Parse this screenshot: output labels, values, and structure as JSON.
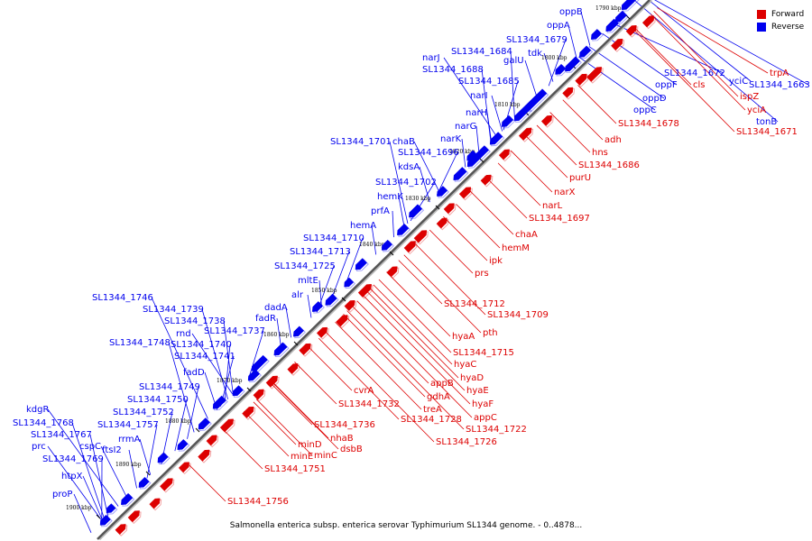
{
  "colors": {
    "forward": "#dd0000",
    "reverse": "#0000ee",
    "backbone": "#555555"
  },
  "legend": {
    "forward": "Forward",
    "reverse": "Reverse"
  },
  "caption": "Salmonella enterica subsp. enterica serovar Typhimurium SL1344 genome. - 0..4878...",
  "ticks": [
    "1790 kbp",
    "1800 kbp",
    "1810 kbp",
    "1820 kbp",
    "1830 kbp",
    "1840 kbp",
    "1850 kbp",
    "1860 kbp",
    "1870 kbp",
    "1880 kbp",
    "1890 kbp",
    "1900 kbp"
  ],
  "reverse_labels": [
    "oppB",
    "oppA",
    "SL1344_1679",
    "tdk",
    "narJ",
    "SL1344_1684",
    "galU",
    "SL1344_1688",
    "SL1344_1685",
    "narI",
    "narH",
    "narG",
    "narK",
    "SL1344_1701",
    "chaB",
    "SL1344_1696",
    "kdsA",
    "SL1344_1702",
    "hemK",
    "prfA",
    "hemA",
    "SL1344_1710",
    "SL1344_1713",
    "SL1344_1725",
    "mltE",
    "alr",
    "dadA",
    "fadR",
    "SL1344_1746",
    "SL1344_1739",
    "SL1344_1738",
    "rnd",
    "SL1344_1737",
    "SL1344_1748",
    "SL1344_1740",
    "SL1344_1741",
    "fadD",
    "SL1344_1749",
    "SL1344_1750",
    "SL1344_1752",
    "kdgR",
    "SL1344_1768",
    "SL1344_1757",
    "SL1344_1767",
    "rrmA",
    "prc",
    "cspC",
    "ftsI2",
    "SL1344_1769",
    "htpX",
    "proP",
    "SL1344_1672",
    "oppF",
    "oppD",
    "oppC",
    "yciC",
    "SL1344_1663",
    "tonB"
  ],
  "forward_labels": [
    "trpA",
    "cls",
    "ispZ",
    "yciA",
    "SL1344_1671",
    "SL1344_1678",
    "adh",
    "hns",
    "SL1344_1686",
    "purU",
    "narX",
    "narL",
    "SL1344_1697",
    "chaA",
    "hemM",
    "ipk",
    "prs",
    "SL1344_1712",
    "SL1344_1709",
    "pth",
    "hyaA",
    "SL1344_1715",
    "hyaC",
    "hyaD",
    "hyaE",
    "hyaF",
    "appB",
    "gdhA",
    "appC",
    "treA",
    "SL1344_1722",
    "SL1344_1728",
    "SL1344_1726",
    "cvrA",
    "SL1344_1732",
    "SL1344_1736",
    "nhaB",
    "dsbB",
    "minD",
    "minC",
    "minE",
    "SL1344_1751",
    "SL1344_1756"
  ]
}
